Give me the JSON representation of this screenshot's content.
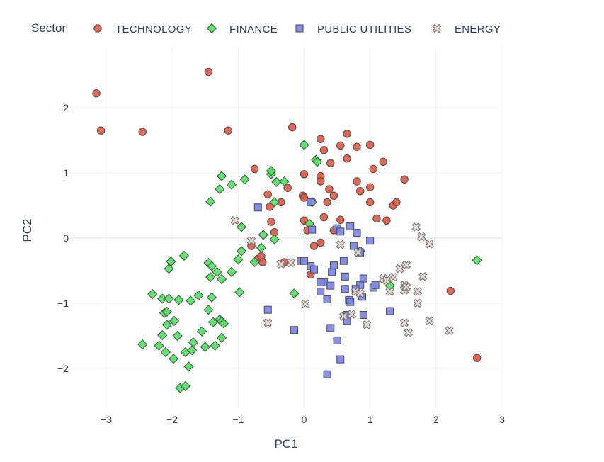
{
  "chart_data": {
    "type": "scatter",
    "xlabel": "PC1",
    "ylabel": "PC2",
    "xlim": [
      -3.5,
      3.0
    ],
    "ylim": [
      -2.6,
      2.9
    ],
    "xticks": [
      -3,
      -2,
      -1,
      0,
      1,
      2,
      3
    ],
    "yticks": [
      -2,
      -1,
      0,
      1,
      2
    ],
    "xtick_labels": [
      "−3",
      "−2",
      "−1",
      "0",
      "1",
      "2",
      "3"
    ],
    "ytick_labels": [
      "−2",
      "−1",
      "0",
      "1",
      "2"
    ],
    "grid": true,
    "legend": {
      "title": "Sector",
      "placement": "top"
    },
    "series": [
      {
        "name": "TECHNOLOGY",
        "marker": "circle",
        "color": "#e05a47",
        "points": [
          [
            -3.15,
            2.22
          ],
          [
            -3.08,
            1.65
          ],
          [
            -2.45,
            1.63
          ],
          [
            -1.45,
            2.55
          ],
          [
            -1.15,
            1.65
          ],
          [
            -0.75,
            1.06
          ],
          [
            -0.55,
            0.67
          ],
          [
            -0.52,
            0.48
          ],
          [
            -0.35,
            0.55
          ],
          [
            -0.5,
            0.25
          ],
          [
            -0.45,
            0.09
          ],
          [
            -0.7,
            -0.32
          ],
          [
            -0.65,
            -0.28
          ],
          [
            -0.8,
            -0.12
          ],
          [
            -0.63,
            -0.37
          ],
          [
            -0.3,
            -0.37
          ],
          [
            -0.25,
            0.77
          ],
          [
            -0.18,
            1.7
          ],
          [
            0.0,
            0.98
          ],
          [
            -0.02,
            0.65
          ],
          [
            0.0,
            0.62
          ],
          [
            0.12,
            0.56
          ],
          [
            0.0,
            0.27
          ],
          [
            0.05,
            0.12
          ],
          [
            0.15,
            -0.12
          ],
          [
            0.1,
            -0.56
          ],
          [
            0.25,
            1.52
          ],
          [
            0.3,
            1.35
          ],
          [
            0.25,
            0.95
          ],
          [
            0.25,
            0.87
          ],
          [
            0.38,
            0.75
          ],
          [
            0.45,
            0.65
          ],
          [
            0.35,
            0.55
          ],
          [
            0.3,
            0.32
          ],
          [
            0.55,
            0.28
          ],
          [
            0.45,
            0.12
          ],
          [
            0.25,
            -0.07
          ],
          [
            0.4,
            1.15
          ],
          [
            0.55,
            1.42
          ],
          [
            0.65,
            1.6
          ],
          [
            0.65,
            1.22
          ],
          [
            0.8,
            1.4
          ],
          [
            1.0,
            1.43
          ],
          [
            0.8,
            0.87
          ],
          [
            0.85,
            0.72
          ],
          [
            1.0,
            0.78
          ],
          [
            1.05,
            1.06
          ],
          [
            1.2,
            1.17
          ],
          [
            1.0,
            0.55
          ],
          [
            1.1,
            0.3
          ],
          [
            1.25,
            0.27
          ],
          [
            1.35,
            0.5
          ],
          [
            1.4,
            0.55
          ],
          [
            1.52,
            0.9
          ],
          [
            2.22,
            -0.81
          ],
          [
            2.62,
            -1.84
          ]
        ]
      },
      {
        "name": "FINANCE",
        "marker": "diamond",
        "color": "#4fe35f",
        "points": [
          [
            -2.45,
            -1.63
          ],
          [
            -2.3,
            -0.86
          ],
          [
            -2.2,
            -1.65
          ],
          [
            -2.15,
            -0.93
          ],
          [
            -2.15,
            -1.49
          ],
          [
            -2.12,
            -1.15
          ],
          [
            -2.1,
            -1.75
          ],
          [
            -2.08,
            -1.33
          ],
          [
            -2.05,
            -0.93
          ],
          [
            -2.08,
            -1.13
          ],
          [
            -2.05,
            -0.47
          ],
          [
            -2.02,
            -0.36
          ],
          [
            -1.98,
            -1.85
          ],
          [
            -1.97,
            -1.27
          ],
          [
            -1.92,
            -1.5
          ],
          [
            -1.9,
            -0.95
          ],
          [
            -1.88,
            -2.3
          ],
          [
            -1.82,
            -0.27
          ],
          [
            -1.8,
            -2.27
          ],
          [
            -1.8,
            -1.75
          ],
          [
            -1.75,
            -1.97
          ],
          [
            -1.72,
            -0.96
          ],
          [
            -1.7,
            -1.72
          ],
          [
            -1.68,
            -1.6
          ],
          [
            -1.6,
            -0.88
          ],
          [
            -1.55,
            -1.43
          ],
          [
            -1.5,
            -1.67
          ],
          [
            -1.45,
            -0.38
          ],
          [
            -1.42,
            -0.6
          ],
          [
            -1.45,
            -1.1
          ],
          [
            -1.4,
            -0.91
          ],
          [
            -1.4,
            -0.43
          ],
          [
            -1.38,
            -1.29
          ],
          [
            -1.35,
            -1.65
          ],
          [
            -1.32,
            -0.52
          ],
          [
            -1.28,
            -1.25
          ],
          [
            -1.25,
            -1.28
          ],
          [
            -1.25,
            -1.53
          ],
          [
            -1.22,
            -1.31
          ],
          [
            -1.25,
            -0.63
          ],
          [
            -1.42,
            0.56
          ],
          [
            -1.28,
            0.75
          ],
          [
            -1.25,
            0.95
          ],
          [
            -1.1,
            0.82
          ],
          [
            -0.9,
            0.9
          ],
          [
            -1.1,
            -0.52
          ],
          [
            -1.0,
            -0.33
          ],
          [
            -0.95,
            -0.2
          ],
          [
            -0.98,
            -0.83
          ],
          [
            -0.95,
            0.17
          ],
          [
            -0.75,
            -0.37
          ],
          [
            -0.65,
            -0.15
          ],
          [
            -0.62,
            0.05
          ],
          [
            -0.5,
            0.98
          ],
          [
            -0.5,
            1.03
          ],
          [
            -0.42,
            0.86
          ],
          [
            -0.3,
            0.87
          ],
          [
            -0.45,
            0.55
          ],
          [
            -0.45,
            -0.02
          ],
          [
            -0.15,
            -0.85
          ],
          [
            0.0,
            1.43
          ],
          [
            0.18,
            1.2
          ],
          [
            0.2,
            1.17
          ],
          [
            0.12,
            0.55
          ],
          [
            0.08,
            0.22
          ],
          [
            0.85,
            -0.2
          ],
          [
            1.3,
            -0.73
          ],
          [
            2.62,
            -0.34
          ]
        ]
      },
      {
        "name": "PUBLIC UTILITIES",
        "marker": "square",
        "color": "#7b86e8",
        "points": [
          [
            -0.7,
            0.47
          ],
          [
            -0.55,
            -1.1
          ],
          [
            -0.15,
            -1.41
          ],
          [
            -0.05,
            -0.35
          ],
          [
            0.1,
            -0.43
          ],
          [
            0.1,
            0.55
          ],
          [
            0.12,
            0.13
          ],
          [
            0.15,
            -0.48
          ],
          [
            0.25,
            -0.82
          ],
          [
            0.3,
            -0.68
          ],
          [
            0.35,
            -0.94
          ],
          [
            0.4,
            -0.73
          ],
          [
            0.42,
            -0.52
          ],
          [
            0.45,
            -0.42
          ],
          [
            0.5,
            0.15
          ],
          [
            0.55,
            0.1
          ],
          [
            0.6,
            -0.35
          ],
          [
            0.62,
            -0.78
          ],
          [
            0.62,
            -0.59
          ],
          [
            0.65,
            -1.18
          ],
          [
            0.68,
            -0.95
          ],
          [
            0.7,
            0.18
          ],
          [
            0.75,
            -0.12
          ],
          [
            0.8,
            0.08
          ],
          [
            0.85,
            -0.22
          ],
          [
            0.85,
            -0.72
          ],
          [
            0.88,
            -0.9
          ],
          [
            0.9,
            -0.62
          ],
          [
            0.9,
            -1.18
          ],
          [
            1.0,
            -0.04
          ],
          [
            1.05,
            -0.76
          ],
          [
            1.08,
            -0.72
          ],
          [
            1.3,
            -1.12
          ],
          [
            0.4,
            -1.38
          ],
          [
            0.5,
            -1.57
          ],
          [
            0.55,
            -1.86
          ],
          [
            0.35,
            -2.09
          ],
          [
            0.65,
            -1.27
          ],
          [
            0.7,
            -0.98
          ],
          [
            0.78,
            -0.78
          ],
          [
            0.0,
            -0.35
          ],
          [
            0.25,
            -0.68
          ]
        ]
      },
      {
        "name": "ENERGY",
        "marker": "x",
        "color": "#e8d8d0",
        "points": [
          [
            -1.05,
            0.27
          ],
          [
            -0.8,
            -0.04
          ],
          [
            -0.55,
            -1.3
          ],
          [
            -0.35,
            -0.4
          ],
          [
            -0.2,
            -0.38
          ],
          [
            0.02,
            -1.01
          ],
          [
            0.55,
            -0.1
          ],
          [
            0.6,
            -1.2
          ],
          [
            0.72,
            -1.17
          ],
          [
            0.78,
            -0.82
          ],
          [
            0.82,
            -0.22
          ],
          [
            0.85,
            -0.85
          ],
          [
            0.95,
            -1.33
          ],
          [
            1.2,
            -0.62
          ],
          [
            1.25,
            -0.65
          ],
          [
            1.3,
            -0.82
          ],
          [
            1.35,
            -0.6
          ],
          [
            1.45,
            -0.47
          ],
          [
            1.52,
            -0.72
          ],
          [
            1.52,
            -0.8
          ],
          [
            1.55,
            -0.75
          ],
          [
            1.55,
            -0.41
          ],
          [
            1.52,
            -1.3
          ],
          [
            1.58,
            -1.45
          ],
          [
            1.7,
            0.17
          ],
          [
            1.72,
            -1.0
          ],
          [
            1.72,
            -0.82
          ],
          [
            1.78,
            0.02
          ],
          [
            1.8,
            -0.59
          ],
          [
            1.9,
            -0.09
          ],
          [
            1.9,
            -1.27
          ],
          [
            2.2,
            -1.42
          ]
        ]
      }
    ]
  }
}
